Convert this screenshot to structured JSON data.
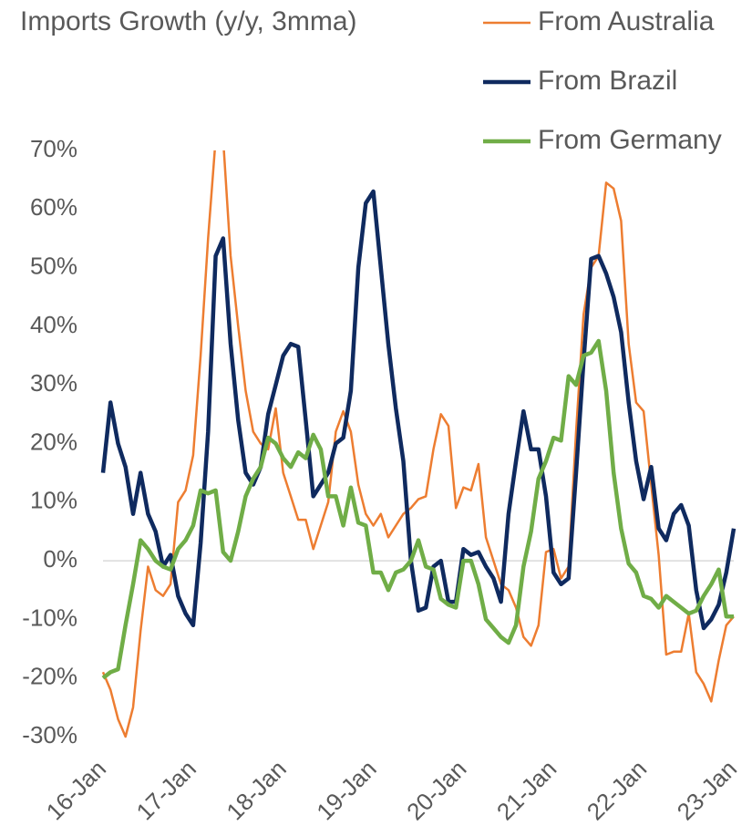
{
  "chart_data": {
    "type": "line",
    "title": "Imports Growth (y/y, 3mma)",
    "categories": [
      "16-Jan",
      null,
      null,
      null,
      null,
      null,
      null,
      null,
      null,
      null,
      null,
      null,
      "17-Jan",
      null,
      null,
      null,
      null,
      null,
      null,
      null,
      null,
      null,
      null,
      null,
      "18-Jan",
      null,
      null,
      null,
      null,
      null,
      null,
      null,
      null,
      null,
      null,
      null,
      "19-Jan",
      null,
      null,
      null,
      null,
      null,
      null,
      null,
      null,
      null,
      null,
      null,
      "20-Jan",
      null,
      null,
      null,
      null,
      null,
      null,
      null,
      null,
      null,
      null,
      null,
      "21-Jan",
      null,
      null,
      null,
      null,
      null,
      null,
      null,
      null,
      null,
      null,
      null,
      "22-Jan",
      null,
      null,
      null,
      null,
      null,
      null,
      null,
      null,
      null,
      null,
      null,
      "23-Jan"
    ],
    "series": [
      {
        "name": "From Australia",
        "color": "#ed7d31",
        "width": 2.5,
        "values": [
          -19,
          -22,
          -27,
          -30,
          -25,
          -12,
          -1,
          -5,
          -6,
          -4,
          10,
          12,
          18,
          35,
          55,
          72,
          72,
          52,
          40,
          29,
          22,
          20,
          19,
          26,
          15,
          11,
          7,
          7,
          2,
          6,
          10,
          22,
          25.5,
          22,
          13,
          8,
          6,
          8,
          4,
          6,
          8,
          9,
          10.5,
          11,
          19,
          25,
          23,
          9,
          12.5,
          12,
          16.5,
          4,
          0,
          -4,
          -5,
          -8,
          -13,
          -14.5,
          -11,
          1.5,
          2,
          -3,
          -1,
          22,
          42,
          50,
          52,
          64.5,
          63.5,
          58,
          37,
          27,
          25.5,
          13,
          1,
          -16,
          -15.5,
          -15.5,
          -9,
          -19,
          -21,
          -24,
          -17,
          -11,
          -9.5
        ]
      },
      {
        "name": "From Brazil",
        "color": "#0f2a5f",
        "width": 4.5,
        "values": [
          15,
          27,
          20,
          16,
          8,
          15,
          8,
          5,
          -1,
          1,
          -6,
          -9,
          -11,
          3,
          22,
          52,
          55,
          37,
          24,
          15,
          13,
          16,
          25,
          30,
          35,
          37,
          36.5,
          24,
          11,
          13,
          15,
          20,
          21,
          29,
          50,
          61,
          63,
          50,
          37,
          26,
          17,
          0,
          -8.5,
          -8,
          -1,
          0,
          -7,
          -7,
          2,
          1,
          1.5,
          -1,
          -3,
          -7,
          8,
          17,
          25.5,
          19,
          19,
          11,
          -2,
          -4,
          -3,
          15,
          34,
          51.5,
          52,
          49,
          45,
          39,
          27,
          17,
          10.5,
          16,
          5.5,
          3.5,
          8,
          9.5,
          6,
          -5,
          -11.5,
          -10,
          -7.5,
          -2,
          5.5
        ]
      },
      {
        "name": "From Germany",
        "color": "#70ad47",
        "width": 4.5,
        "values": [
          -20,
          -19,
          -18.5,
          -11,
          -4,
          3.5,
          2,
          0,
          -1,
          -1.5,
          2,
          3.5,
          6,
          12,
          11.5,
          12,
          1.5,
          0,
          5,
          11,
          14,
          16,
          21,
          20,
          17.5,
          16,
          18.5,
          17.5,
          21.5,
          19,
          11,
          11,
          6,
          12.5,
          6.5,
          6,
          -2,
          -2,
          -5,
          -2,
          -1.5,
          0,
          3.5,
          -1,
          -1.5,
          -6.5,
          -7.5,
          -8,
          0,
          0,
          -4,
          -10,
          -11.5,
          -13,
          -14,
          -11,
          -1,
          5,
          14,
          17,
          21,
          20.5,
          31.5,
          30,
          35,
          35.5,
          37.5,
          29,
          15,
          5.5,
          -0.5,
          -2,
          -6,
          -6.5,
          -8,
          -6,
          -7,
          -8,
          -9,
          -8.5,
          -6,
          -4,
          -1.5,
          -9.5,
          -9.5
        ]
      }
    ],
    "ylim": [
      -30,
      70
    ],
    "yticks": [
      {
        "value": -30,
        "label": "-30%"
      },
      {
        "value": -20,
        "label": "-20%"
      },
      {
        "value": -10,
        "label": "-10%"
      },
      {
        "value": 0,
        "label": "0%"
      },
      {
        "value": 10,
        "label": "10%"
      },
      {
        "value": 20,
        "label": "20%"
      },
      {
        "value": 30,
        "label": "30%"
      },
      {
        "value": 40,
        "label": "40%"
      },
      {
        "value": 50,
        "label": "50%"
      },
      {
        "value": 60,
        "label": "60%"
      },
      {
        "value": 70,
        "label": "70%"
      }
    ],
    "grid": false
  }
}
